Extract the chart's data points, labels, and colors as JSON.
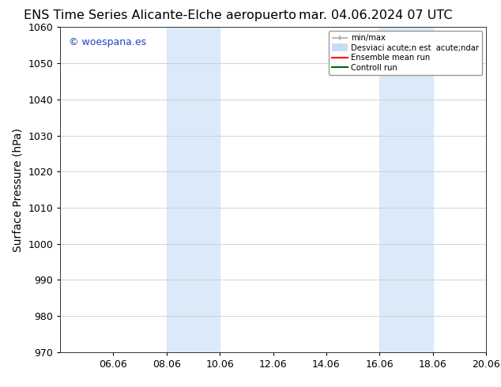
{
  "title_left": "ENS Time Series Alicante-Elche aeropuerto",
  "title_right": "mar. 04.06.2024 07 UTC",
  "ylabel": "Surface Pressure (hPa)",
  "ylim": [
    970,
    1060
  ],
  "yticks": [
    970,
    980,
    990,
    1000,
    1010,
    1020,
    1030,
    1040,
    1050,
    1060
  ],
  "xlim": [
    0,
    16
  ],
  "xtick_labels": [
    "06.06",
    "08.06",
    "10.06",
    "12.06",
    "14.06",
    "16.06",
    "18.06",
    "20.06"
  ],
  "xtick_positions": [
    2,
    4,
    6,
    8,
    10,
    12,
    14,
    16
  ],
  "shaded_bands": [
    {
      "x_start": 4,
      "x_end": 6,
      "color": "#daeaf8",
      "alpha": 1.0
    },
    {
      "x_start": 12,
      "x_end": 14,
      "color": "#daeaf8",
      "alpha": 1.0
    }
  ],
  "watermark_text": "© woespana.es",
  "watermark_color": "#2244bb",
  "bg_color": "#ffffff",
  "plot_bg_color": "#ffffff",
  "grid_color": "#cccccc",
  "legend_label_1": "min/max",
  "legend_label_2": "Desviaci acute;n est  acute;ndar",
  "legend_label_3": "Ensemble mean run",
  "legend_label_4": "Controll run",
  "legend_color_1": "#aaaaaa",
  "legend_color_2": "#c8dcf0",
  "legend_color_3": "#ff0000",
  "legend_color_4": "#006600",
  "title_fontsize": 11.5,
  "ylabel_fontsize": 10,
  "tick_fontsize": 9,
  "watermark_fontsize": 9
}
